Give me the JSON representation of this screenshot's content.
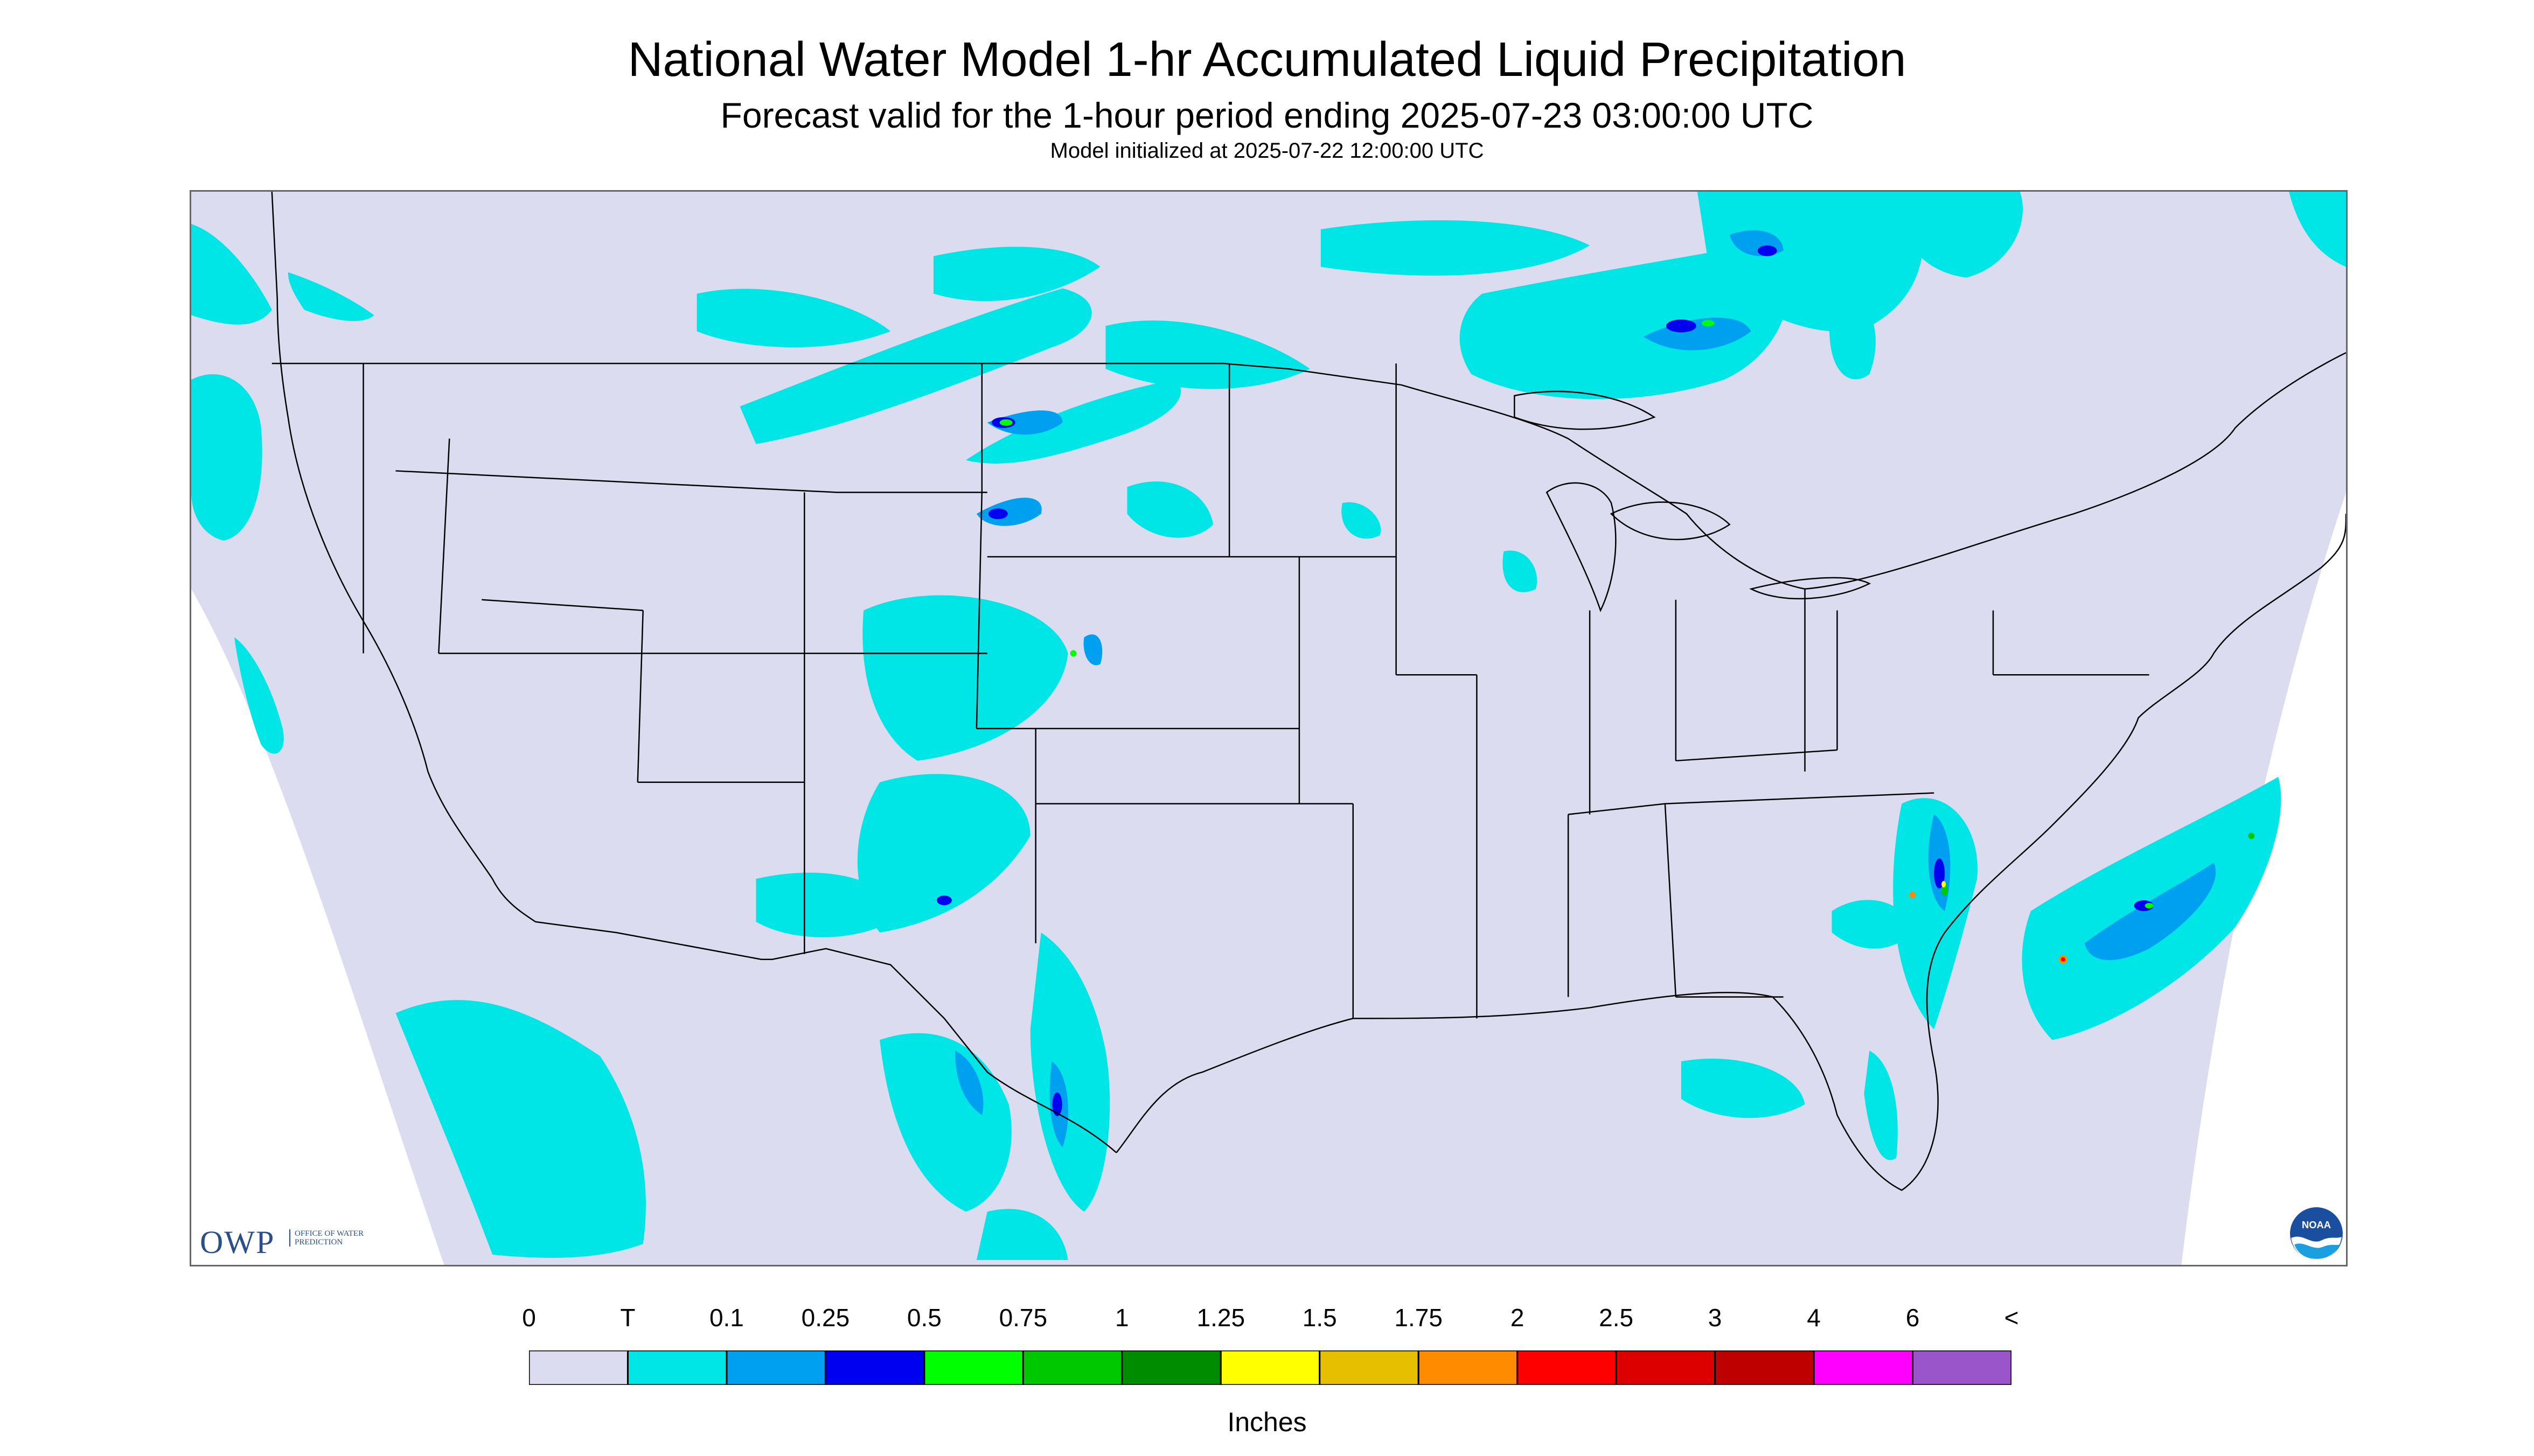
{
  "title": "National Water Model 1-hr Accumulated Liquid Precipitation",
  "subtitle": "Forecast valid for the 1-hour period ending 2025-07-23 03:00:00 UTC",
  "init_note": "Model initialized at 2025-07-22 12:00:00 UTC",
  "logos": {
    "owp_main": "OWP",
    "owp_sub": "OFFICE OF WATER PREDICTION",
    "noaa": "NOAA"
  },
  "legend": {
    "units": "Inches",
    "labels": [
      "0",
      "T",
      "0.1",
      "0.25",
      "0.5",
      "0.75",
      "1",
      "1.25",
      "1.5",
      "1.75",
      "2",
      "2.5",
      "3",
      "4",
      "6",
      "<"
    ],
    "colors": [
      "#dcdcf0",
      "#00e6e6",
      "#00a0f0",
      "#0000f0",
      "#00ff00",
      "#00c800",
      "#008c00",
      "#ffff00",
      "#e6c000",
      "#ff8c00",
      "#ff0000",
      "#dc0000",
      "#be0000",
      "#ff00ff",
      "#9955c9"
    ]
  },
  "map": {
    "background_color": "#dcdcf0",
    "outside_color": "#ffffff",
    "boundary_color": "#000000"
  }
}
